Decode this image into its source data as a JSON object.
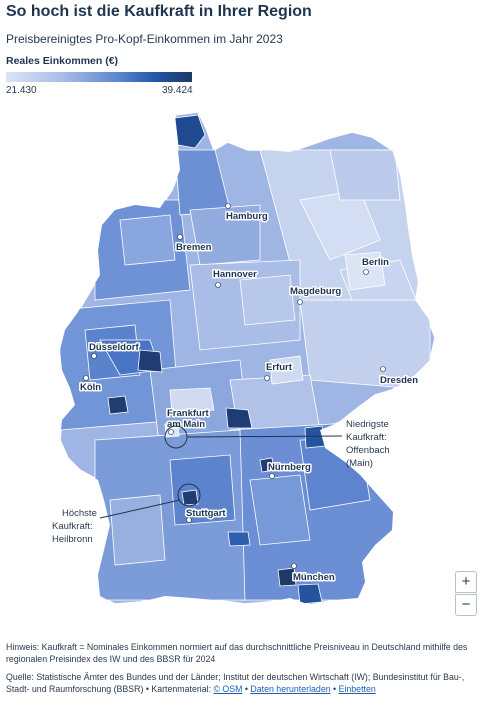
{
  "title": "So hoch ist die Kaufkraft in Ihrer Region",
  "subtitle": "Preisbereinigtes Pro-Kopf-Einkommen im Jahr 2023",
  "legend": {
    "title": "Reales Einkommen (€)",
    "min": "21.430",
    "max": "39.424",
    "color_min": "#dbe4f5",
    "color_max": "#1d3a66"
  },
  "cities": {
    "hamburg": "Hamburg",
    "bremen": "Bremen",
    "hannover": "Hannover",
    "berlin": "Berlin",
    "magdeburg": "Magdeburg",
    "duesseldorf": "Düsseldorf",
    "koeln": "Köln",
    "erfurt": "Erfurt",
    "dresden": "Dresden",
    "frankfurt_line1": "Frankfurt",
    "frankfurt_line2": "am Main",
    "nuernberg": "Nürnberg",
    "stuttgart": "Stuttgart",
    "muenchen": "München"
  },
  "annotations": {
    "lowest": [
      "Niedrigste",
      "Kaufkraft:",
      "Offenbach",
      "(Main)"
    ],
    "highest": [
      "Höchste",
      "Kaufkraft:",
      "Heilbronn"
    ]
  },
  "zoom": {
    "in": "+",
    "out": "−"
  },
  "footer": {
    "note": "Hinweis: Kaufkraft = Nominales Einkommen normiert auf das durchschnittliche Preisniveau in Deutschland mithilfe des regionalen Preisindex des IW und des BBSR für 2024",
    "source_text": "Quelle: Statistische Ämter des Bundes und der Länder; Institut der deutschen Wirtschaft (IW); Bundesinstitut für Bau-, Stadt- und Raumforschung (BBSR) • Kartenmaterial: ",
    "osm_link": "© OSM",
    "separator": " • ",
    "download_link": "Daten herunterladen",
    "embed_link": "Einbetten"
  }
}
